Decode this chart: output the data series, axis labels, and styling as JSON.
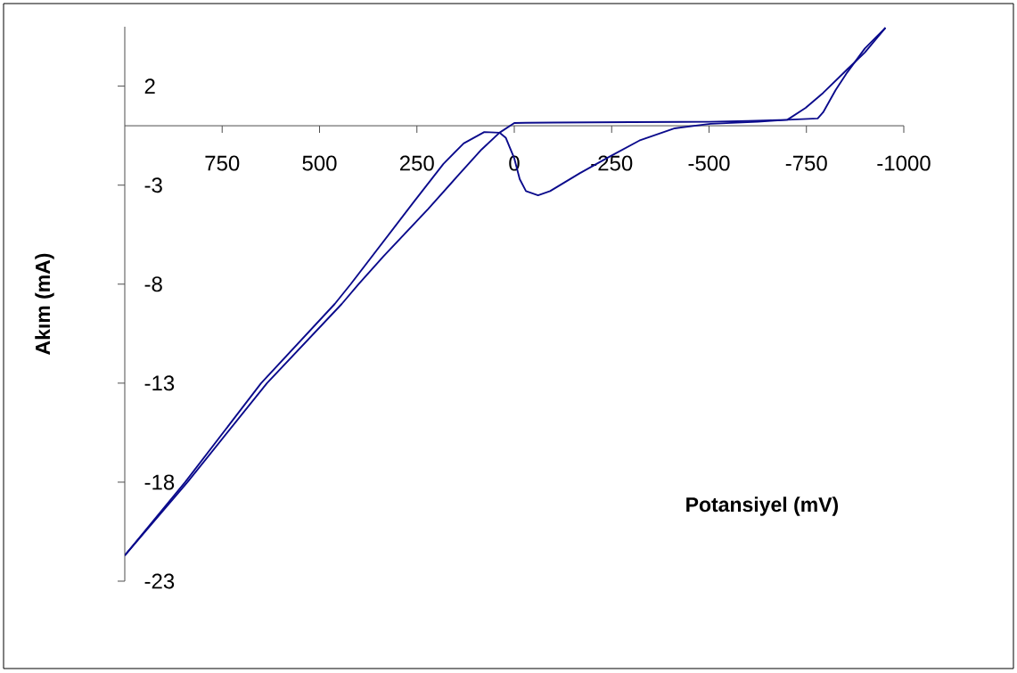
{
  "chart_data": {
    "type": "line",
    "xlabel": "Potansiyel (mV)",
    "ylabel": "Akım (mA)",
    "xlim": [
      1000,
      -1000
    ],
    "xticks": [
      750,
      500,
      250,
      0,
      -250,
      -500,
      -750,
      -1000
    ],
    "ylim": [
      -23,
      5
    ],
    "yticks": [
      2,
      -3,
      -8,
      -13,
      -18,
      -23
    ],
    "series": [
      {
        "color": "#0b0b8c",
        "x": [
          1000,
          839,
          635,
          443,
          400,
          336,
          221,
          146,
          84,
          38,
          0,
          -30,
          -100,
          -300,
          -500,
          -600,
          -701,
          -748,
          -793,
          -855,
          -900,
          -953
        ],
        "values": [
          -21.7,
          -18,
          -13,
          -9,
          -8,
          -6.6,
          -4.2,
          -2.55,
          -1.2,
          -0.35,
          0.14,
          0.15,
          0.16,
          0.18,
          0.2,
          0.24,
          0.3,
          0.9,
          1.66,
          2.85,
          3.7,
          4.95
        ]
      },
      {
        "color": "#0b0b8c",
        "x": [
          -953,
          -900,
          -855,
          -825,
          -793,
          -779,
          -701,
          -625,
          -504,
          -412,
          -321,
          -244,
          -168,
          -92,
          -61,
          -30,
          -14,
          0,
          22,
          38,
          77,
          130,
          182,
          260,
          420,
          461,
          650,
          845,
          1000
        ],
        "values": [
          4.95,
          3.9,
          2.7,
          1.8,
          0.68,
          0.37,
          0.3,
          0.2,
          0.1,
          -0.13,
          -0.75,
          -1.57,
          -2.4,
          -3.3,
          -3.51,
          -3.3,
          -2.7,
          -1.65,
          -0.6,
          -0.35,
          -0.32,
          -0.89,
          -1.93,
          -3.9,
          -8,
          -9,
          -13,
          -18,
          -21.7
        ]
      }
    ]
  }
}
